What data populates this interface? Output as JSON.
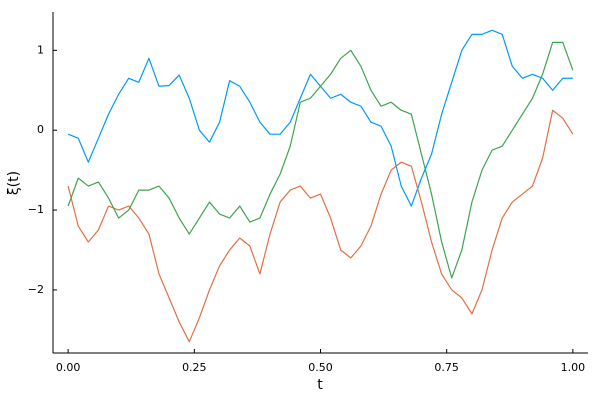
{
  "chart_data": {
    "type": "line",
    "x_label": "t",
    "y_label": "ξ(t)",
    "x": [
      0,
      0.02,
      0.04,
      0.06,
      0.08,
      0.1,
      0.12,
      0.14,
      0.16,
      0.18,
      0.2,
      0.22,
      0.24,
      0.26,
      0.28,
      0.3,
      0.32,
      0.34,
      0.36,
      0.38,
      0.4,
      0.42,
      0.44,
      0.46,
      0.48,
      0.5,
      0.52,
      0.54,
      0.56,
      0.58,
      0.6,
      0.62,
      0.64,
      0.66,
      0.68,
      0.7,
      0.72,
      0.74,
      0.76,
      0.78,
      0.8,
      0.82,
      0.84,
      0.86,
      0.88,
      0.9,
      0.92,
      0.94,
      0.96,
      0.98,
      1.0
    ],
    "series": [
      {
        "color": "#009afa",
        "values": [
          -0.05,
          -0.1,
          -0.4,
          -0.1,
          0.2,
          0.45,
          0.65,
          0.6,
          0.9,
          0.55,
          0.56,
          0.69,
          0.4,
          0.0,
          -0.15,
          0.1,
          0.62,
          0.55,
          0.35,
          0.1,
          -0.05,
          -0.05,
          0.1,
          0.4,
          0.7,
          0.55,
          0.4,
          0.45,
          0.35,
          0.3,
          0.1,
          0.05,
          -0.2,
          -0.7,
          -0.95,
          -0.6,
          -0.3,
          0.2,
          0.6,
          1.0,
          1.2,
          1.2,
          1.25,
          1.2,
          0.8,
          0.65,
          0.7,
          0.65,
          0.5,
          0.65,
          0.65
        ]
      },
      {
        "color": "#e26f46",
        "values": [
          -0.7,
          -1.2,
          -1.4,
          -1.25,
          -0.95,
          -1.0,
          -0.95,
          -1.1,
          -1.3,
          -1.8,
          -2.1,
          -2.4,
          -2.65,
          -2.35,
          -2.0,
          -1.7,
          -1.5,
          -1.35,
          -1.45,
          -1.8,
          -1.3,
          -0.9,
          -0.75,
          -0.7,
          -0.85,
          -0.8,
          -1.1,
          -1.5,
          -1.6,
          -1.45,
          -1.2,
          -0.8,
          -0.5,
          -0.4,
          -0.45,
          -0.9,
          -1.4,
          -1.8,
          -2.0,
          -2.1,
          -2.3,
          -2.0,
          -1.5,
          -1.1,
          -0.9,
          -0.8,
          -0.7,
          -0.35,
          0.25,
          0.15,
          -0.05
        ]
      },
      {
        "color": "#3ea44e",
        "values": [
          -0.95,
          -0.6,
          -0.7,
          -0.65,
          -0.85,
          -1.1,
          -1.0,
          -0.75,
          -0.75,
          -0.7,
          -0.85,
          -1.1,
          -1.3,
          -1.1,
          -0.9,
          -1.05,
          -1.1,
          -0.95,
          -1.15,
          -1.1,
          -0.8,
          -0.55,
          -0.2,
          0.35,
          0.4,
          0.55,
          0.7,
          0.9,
          1.0,
          0.8,
          0.5,
          0.3,
          0.35,
          0.25,
          0.2,
          -0.3,
          -0.8,
          -1.4,
          -1.85,
          -1.5,
          -0.9,
          -0.5,
          -0.25,
          -0.2,
          0.0,
          0.2,
          0.4,
          0.7,
          1.1,
          1.1,
          0.75
        ]
      }
    ],
    "xlim": [
      -0.03,
      1.03
    ],
    "xticks": [
      {
        "value": 0,
        "label": "0.00"
      },
      {
        "value": 0.25,
        "label": "0.25"
      },
      {
        "value": 0.5,
        "label": "0.50"
      },
      {
        "value": 0.75,
        "label": "0.75"
      },
      {
        "value": 1,
        "label": "1.00"
      }
    ],
    "ylim": [
      -2.79,
      1.48
    ],
    "yticks": [
      {
        "value": -2,
        "label": "−2"
      },
      {
        "value": -1,
        "label": "−1"
      },
      0,
      1
    ],
    "grid": false
  }
}
